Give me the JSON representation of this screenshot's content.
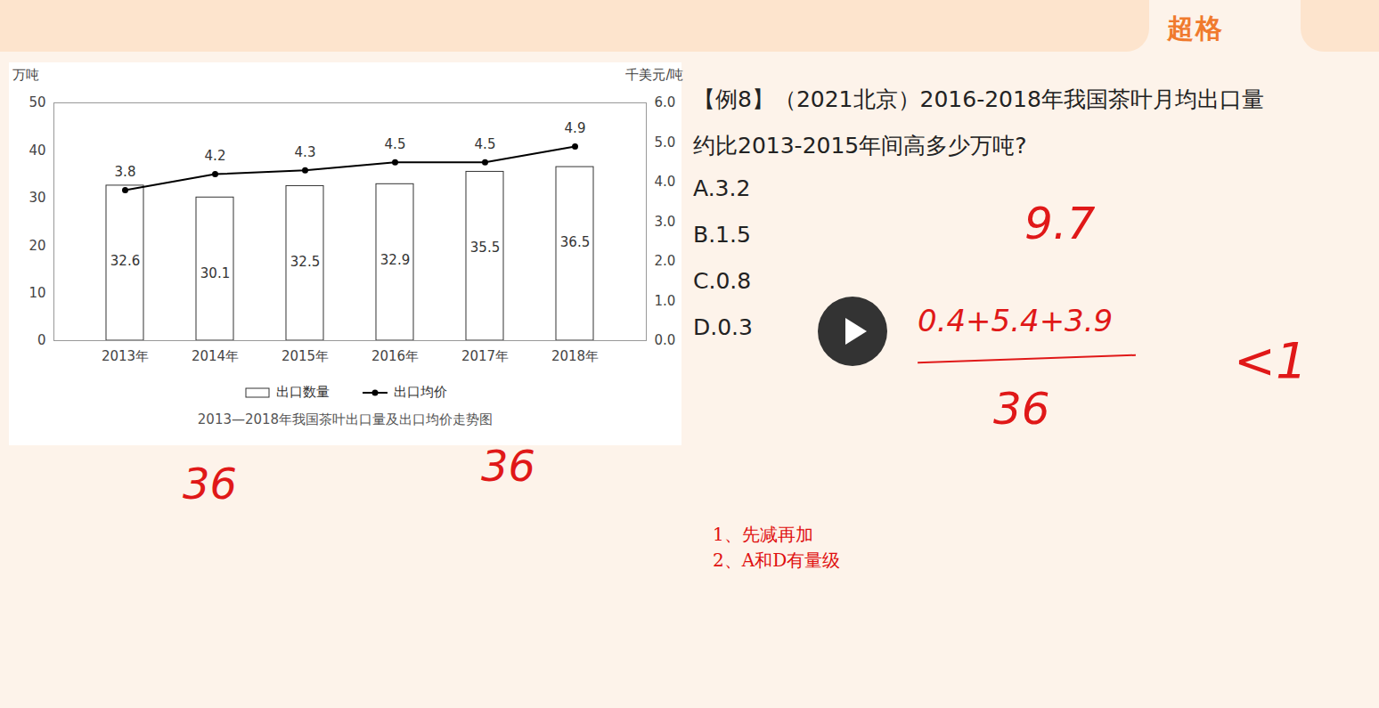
{
  "chart_data": {
    "type": "bar",
    "title": "2013—2018年我国茶叶出口量及出口均价走势图",
    "categories": [
      "2013年",
      "2014年",
      "2015年",
      "2016年",
      "2017年",
      "2018年"
    ],
    "series": [
      {
        "name": "出口数量",
        "type": "bar",
        "color": "#ffffff",
        "values": [
          32.6,
          30.1,
          32.5,
          32.9,
          35.5,
          36.5
        ]
      },
      {
        "name": "出口均价",
        "type": "line",
        "color": "#000000",
        "marker": "circle",
        "axis": "y2",
        "values": [
          3.8,
          4.2,
          4.3,
          4.5,
          4.5,
          4.9
        ]
      }
    ],
    "ylabel": "万吨",
    "y2label": "千美元/吨",
    "ylim": [
      0,
      50
    ],
    "yticks": [
      0,
      10,
      20,
      30,
      40,
      50
    ],
    "y2lim": [
      0,
      6
    ],
    "y2ticks": [
      0,
      1,
      2,
      3,
      4,
      5,
      6
    ],
    "data_labels": true,
    "legend": "bottom"
  },
  "page": {
    "logo": "超格",
    "question_lines": [
      "【例8】（2021北京）2016-2018年我国茶叶月均出口量",
      "约比2013-2015年间高多少万吨?"
    ],
    "options": [
      "A.3.2",
      "B.1.5",
      "C.0.8",
      "D.0.3"
    ],
    "notes": [
      "1、先减再加",
      "2、A和D有量级"
    ],
    "handwriting": [
      "9.7",
      "0.4+5.4+3.9",
      "36",
      "<1",
      "36",
      "36"
    ]
  }
}
